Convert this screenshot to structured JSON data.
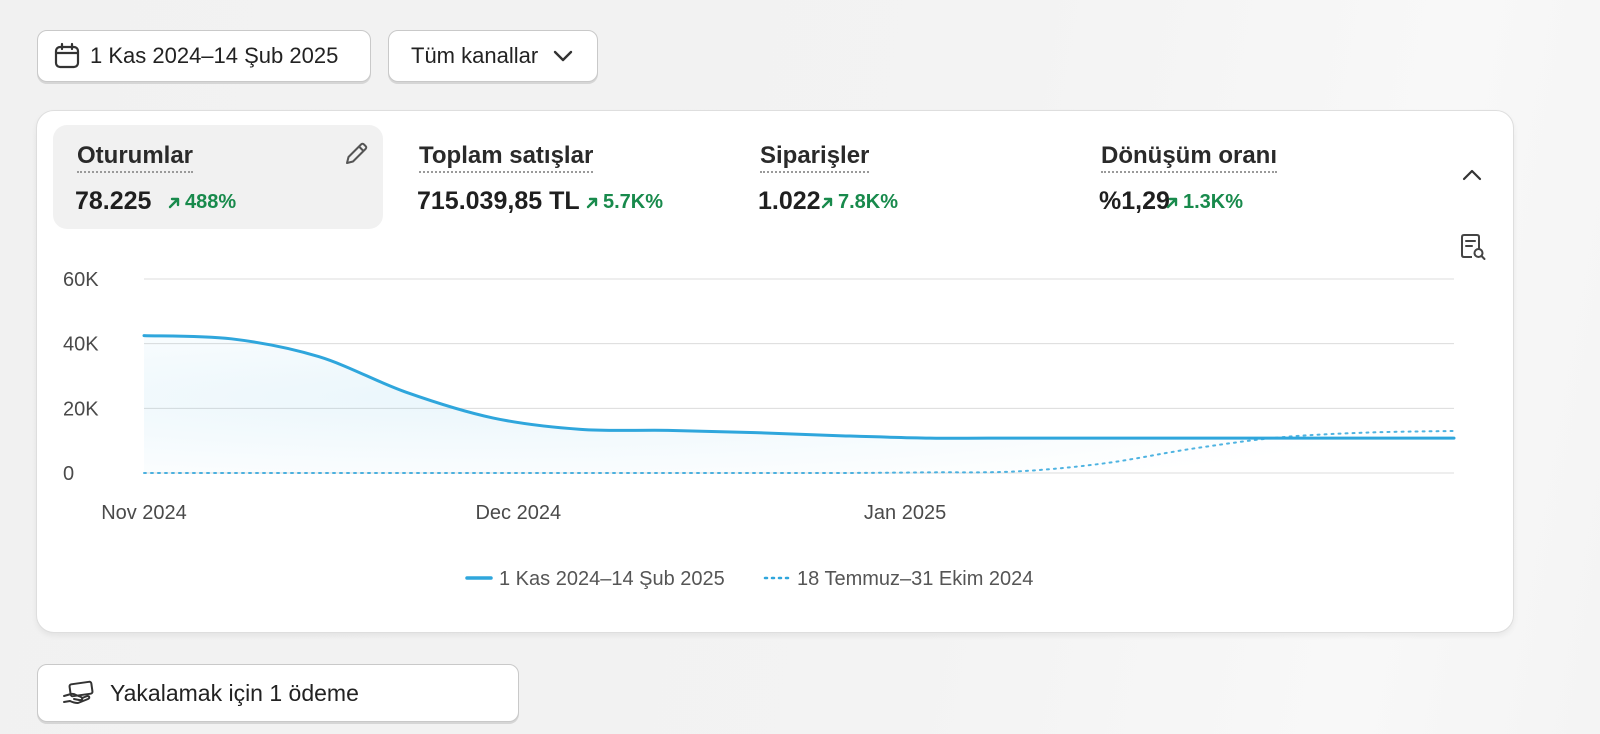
{
  "filters": {
    "date_range": "1 Kas 2024–14 Şub 2025",
    "channel": "Tüm kanallar"
  },
  "metrics": [
    {
      "title": "Oturumlar",
      "value": "78.225",
      "change": "488%",
      "selected": true
    },
    {
      "title": "Toplam satışlar",
      "value": "715.039,85 TL",
      "change": "5.7K%"
    },
    {
      "title": "Siparişler",
      "value": "1.022",
      "change": "7.8K%"
    },
    {
      "title": "Dönüşüm oranı",
      "value": "%1,29",
      "change": "1.3K%"
    }
  ],
  "icons": {
    "calendar": "calendar-icon",
    "dropdown": "chevron-down-icon",
    "edit": "pencil-icon",
    "collapse": "chevron-up-icon",
    "report": "report-search-icon",
    "payment": "hand-card-icon",
    "trend": "arrow-up-right-icon"
  },
  "colors": {
    "accent": "#2fa6dc",
    "positive": "#188a4c"
  },
  "chart_data": {
    "type": "line",
    "x_ticks": [
      "Nov 2024",
      "Dec 2024",
      "Jan 2025"
    ],
    "y_ticks": [
      "60K",
      "40K",
      "20K",
      "0"
    ],
    "ylim": [
      0,
      60000
    ],
    "grid": true,
    "legend_position": "bottom",
    "series": [
      {
        "name": "1 Kas 2024–14 Şub 2025",
        "style": "solid",
        "x": [
          "2024-11-01",
          "2024-11-08",
          "2024-11-15",
          "2024-11-22",
          "2024-11-29",
          "2024-12-06",
          "2024-12-13",
          "2024-12-20",
          "2024-12-27",
          "2025-01-03",
          "2025-01-10",
          "2025-01-17",
          "2025-01-24",
          "2025-01-31",
          "2025-02-07",
          "2025-02-14"
        ],
        "values": [
          42500,
          41500,
          36000,
          25000,
          17000,
          13500,
          13200,
          12500,
          11500,
          10800,
          10800,
          10800,
          10800,
          10800,
          10800,
          10800
        ]
      },
      {
        "name": "18 Temmuz–31 Ekim 2024",
        "style": "dotted",
        "x": [
          "2024-11-01",
          "2024-11-08",
          "2024-11-15",
          "2024-11-22",
          "2024-11-29",
          "2024-12-06",
          "2024-12-13",
          "2024-12-20",
          "2024-12-27",
          "2025-01-03",
          "2025-01-10",
          "2025-01-17",
          "2025-01-24",
          "2025-01-31",
          "2025-02-07",
          "2025-02-14"
        ],
        "values": [
          0,
          0,
          0,
          0,
          0,
          0,
          0,
          0,
          0,
          200,
          500,
          3000,
          7500,
          11000,
          12500,
          13000
        ]
      }
    ]
  },
  "footer": {
    "capture_label": "Yakalamak için 1 ödeme"
  }
}
